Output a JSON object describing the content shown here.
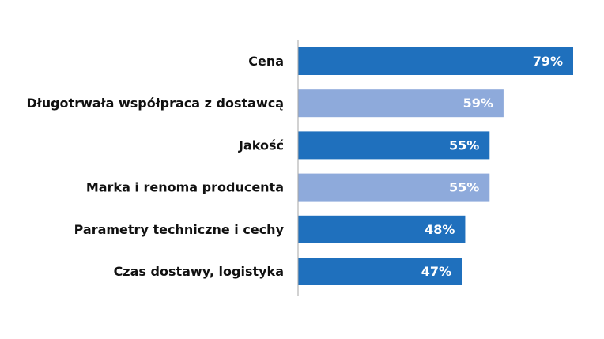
{
  "chart_data": {
    "type": "bar",
    "orientation": "horizontal",
    "title": "",
    "xlabel": "",
    "ylabel": "",
    "xlim": [
      0,
      100
    ],
    "grid": false,
    "legend": "none",
    "categories": [
      "Cena",
      "Długotrwała współpraca z dostawcą",
      "Jakość",
      "Marka i renoma producenta",
      "Parametry techniczne i cechy",
      "Czas dostawy, logistyka"
    ],
    "values": [
      79,
      59,
      55,
      55,
      48,
      47
    ],
    "value_labels": [
      "79%",
      "59%",
      "55%",
      "55%",
      "48%",
      "47%"
    ],
    "bar_colors": [
      "#1f70bd",
      "#8eaadb",
      "#1f70bd",
      "#8eaadb",
      "#1f70bd",
      "#1f70bd"
    ],
    "value_label_color": "#ffffff",
    "axis_color": "#a6a6a6"
  }
}
